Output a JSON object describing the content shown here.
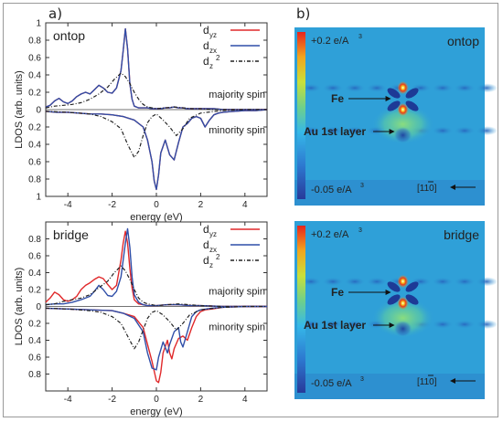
{
  "figure": {
    "panel_a_label": "a)",
    "panel_b_label": "b)"
  },
  "colors": {
    "dyz": "#e0282a",
    "dzx": "#2f4ea8",
    "dz2": "#222222",
    "map_background": "#2fa0d8",
    "map_background_dark": "#2a73c4"
  },
  "chart_data": [
    {
      "type": "line",
      "panel_title": "ontop",
      "xlabel": "energy (eV)",
      "ylabel": "LDOS (arb. units)",
      "xlim": [
        -5,
        5
      ],
      "ylim": [
        -1,
        1
      ],
      "xticks": [
        "-4",
        "-2",
        "0",
        "2",
        "4"
      ],
      "yticks_top": [
        "0.2",
        "0.4",
        "0.6",
        "0.8",
        "1"
      ],
      "yticks_bottom": [
        "0.2",
        "0.4",
        "0.6",
        "0.8",
        "1"
      ],
      "ytick_zero": "0",
      "annotations": [
        "majority spin",
        "minority spin"
      ],
      "legend": [
        "d",
        "d",
        "d"
      ],
      "legend_subscripts": [
        "yz",
        "zx",
        "z"
      ],
      "legend_superscript": "2",
      "series": [
        {
          "name": "dyz",
          "color": "#e0282a",
          "style": "solid",
          "x": [
            -5,
            -4.8,
            -4.6,
            -4.4,
            -4.2,
            -4.0,
            -3.8,
            -3.6,
            -3.4,
            -3.2,
            -3.0,
            -2.8,
            -2.6,
            -2.4,
            -2.2,
            -2.0,
            -1.8,
            -1.6,
            -1.5,
            -1.4,
            -1.3,
            -1.2,
            -1.1,
            -1.0,
            -0.8,
            -0.6,
            -0.4,
            -0.2,
            0.0,
            0.2,
            0.4,
            0.6,
            0.8,
            1.0,
            1.2,
            1.4,
            1.6,
            1.8,
            2.0,
            2.2,
            2.4,
            2.6,
            3.0,
            3.5,
            4.0,
            4.5,
            5.0
          ],
          "y": [
            0.03,
            0.05,
            0.1,
            0.13,
            0.09,
            0.07,
            0.1,
            0.15,
            0.18,
            0.2,
            0.18,
            0.23,
            0.28,
            0.25,
            0.2,
            0.19,
            0.25,
            0.45,
            0.68,
            0.93,
            0.7,
            0.3,
            0.12,
            0.04,
            0.02,
            0.02,
            0.02,
            0.01,
            0.01,
            0.01,
            0.02,
            0.02,
            0.03,
            0.02,
            0.02,
            0.01,
            0.01,
            0.01,
            0.01,
            0.01,
            0.01,
            0.01,
            0.0,
            0.0,
            0.0,
            0.0,
            0.0
          ]
        },
        {
          "name": "dzx",
          "color": "#2f4ea8",
          "style": "solid",
          "x": [
            -5,
            -4.8,
            -4.6,
            -4.4,
            -4.2,
            -4.0,
            -3.8,
            -3.6,
            -3.4,
            -3.2,
            -3.0,
            -2.8,
            -2.6,
            -2.4,
            -2.2,
            -2.0,
            -1.8,
            -1.6,
            -1.5,
            -1.4,
            -1.3,
            -1.2,
            -1.1,
            -1.0,
            -0.8,
            -0.6,
            -0.4,
            -0.2,
            0.0,
            0.2,
            0.4,
            0.6,
            0.8,
            1.0,
            1.2,
            1.4,
            1.6,
            1.8,
            2.0,
            2.2,
            2.4,
            2.6,
            3.0,
            3.5,
            4.0,
            4.5,
            5.0
          ],
          "y": [
            0.03,
            0.05,
            0.1,
            0.13,
            0.09,
            0.07,
            0.1,
            0.15,
            0.18,
            0.2,
            0.18,
            0.23,
            0.28,
            0.25,
            0.2,
            0.19,
            0.25,
            0.45,
            0.68,
            0.93,
            0.7,
            0.3,
            0.12,
            0.04,
            0.02,
            0.02,
            0.02,
            0.01,
            0.01,
            0.01,
            0.02,
            0.02,
            0.03,
            0.02,
            0.02,
            0.01,
            0.01,
            0.01,
            0.01,
            0.01,
            0.01,
            0.01,
            0.0,
            0.0,
            0.0,
            0.0,
            0.0
          ]
        },
        {
          "name": "dz2",
          "color": "#222222",
          "style": "dash-dot",
          "x": [
            -5,
            -4.6,
            -4.2,
            -3.8,
            -3.4,
            -3.0,
            -2.6,
            -2.2,
            -1.9,
            -1.6,
            -1.4,
            -1.2,
            -1.0,
            -0.8,
            -0.6,
            -0.4,
            -0.2,
            0.0,
            0.4,
            0.8,
            1.2,
            1.6,
            2.0,
            2.5,
            3.0,
            4.0,
            5.0
          ],
          "y": [
            0.02,
            0.04,
            0.05,
            0.06,
            0.08,
            0.12,
            0.18,
            0.26,
            0.35,
            0.42,
            0.38,
            0.3,
            0.2,
            0.12,
            0.06,
            0.03,
            0.02,
            0.01,
            0.02,
            0.03,
            0.02,
            0.01,
            0.01,
            0.0,
            0.0,
            0.0,
            0.0
          ]
        },
        {
          "name": "dyz",
          "color": "#e0282a",
          "style": "solid",
          "x": [
            -5,
            -4.5,
            -4.0,
            -3.5,
            -3.0,
            -2.5,
            -2.0,
            -1.5,
            -1.0,
            -0.6,
            -0.4,
            -0.2,
            -0.1,
            0.0,
            0.1,
            0.2,
            0.4,
            0.6,
            0.8,
            1.0,
            1.2,
            1.4,
            1.6,
            1.8,
            2.0,
            2.2,
            2.4,
            2.6,
            2.8,
            3.0,
            3.5,
            4.0,
            4.5,
            5.0
          ],
          "y": [
            -0.02,
            -0.03,
            -0.03,
            -0.04,
            -0.05,
            -0.05,
            -0.06,
            -0.08,
            -0.12,
            -0.2,
            -0.35,
            -0.6,
            -0.82,
            -0.92,
            -0.75,
            -0.5,
            -0.35,
            -0.52,
            -0.58,
            -0.38,
            -0.2,
            -0.16,
            -0.1,
            -0.08,
            -0.1,
            -0.2,
            -0.12,
            -0.06,
            -0.04,
            -0.03,
            -0.02,
            -0.01,
            -0.01,
            0.0
          ]
        },
        {
          "name": "dzx",
          "color": "#2f4ea8",
          "style": "solid",
          "x": [
            -5,
            -4.5,
            -4.0,
            -3.5,
            -3.0,
            -2.5,
            -2.0,
            -1.5,
            -1.0,
            -0.6,
            -0.4,
            -0.2,
            -0.1,
            0.0,
            0.1,
            0.2,
            0.4,
            0.6,
            0.8,
            1.0,
            1.2,
            1.4,
            1.6,
            1.8,
            2.0,
            2.2,
            2.4,
            2.6,
            2.8,
            3.0,
            3.5,
            4.0,
            4.5,
            5.0
          ],
          "y": [
            -0.02,
            -0.03,
            -0.03,
            -0.04,
            -0.05,
            -0.05,
            -0.06,
            -0.08,
            -0.12,
            -0.2,
            -0.35,
            -0.6,
            -0.82,
            -0.92,
            -0.75,
            -0.5,
            -0.35,
            -0.52,
            -0.58,
            -0.38,
            -0.2,
            -0.16,
            -0.1,
            -0.08,
            -0.1,
            -0.2,
            -0.12,
            -0.06,
            -0.04,
            -0.03,
            -0.02,
            -0.01,
            -0.01,
            0.0
          ]
        },
        {
          "name": "dz2",
          "color": "#222222",
          "style": "dash-dot",
          "x": [
            -5,
            -4.0,
            -3.0,
            -2.5,
            -2.0,
            -1.6,
            -1.3,
            -1.0,
            -0.8,
            -0.6,
            -0.4,
            -0.2,
            0.0,
            0.3,
            0.6,
            0.9,
            1.2,
            1.5,
            2.0,
            3.0,
            4.0,
            5.0
          ],
          "y": [
            -0.02,
            -0.03,
            -0.05,
            -0.08,
            -0.14,
            -0.22,
            -0.4,
            -0.55,
            -0.48,
            -0.3,
            -0.15,
            -0.08,
            -0.05,
            -0.12,
            -0.2,
            -0.3,
            -0.22,
            -0.1,
            -0.04,
            -0.01,
            0.0,
            0.0
          ]
        }
      ]
    },
    {
      "type": "line",
      "panel_title": "bridge",
      "xlabel": "energy (eV)",
      "ylabel": "LDOS (arb. units)",
      "xlim": [
        -5,
        5
      ],
      "ylim": [
        -1,
        1
      ],
      "xticks": [
        "-4",
        "-2",
        "0",
        "2",
        "4"
      ],
      "yticks_top": [
        "0.2",
        "0.4",
        "0.6",
        "0.8"
      ],
      "yticks_bottom": [
        "0.2",
        "0.4",
        "0.6",
        "0.8"
      ],
      "ytick_zero": "0",
      "annotations": [
        "majority spin",
        "minority spin"
      ],
      "legend": [
        "d",
        "d",
        "d"
      ],
      "legend_subscripts": [
        "yz",
        "zx",
        "z"
      ],
      "legend_superscript": "2",
      "series": [
        {
          "name": "dyz",
          "color": "#e0282a",
          "style": "solid",
          "x": [
            -5,
            -4.8,
            -4.6,
            -4.4,
            -4.2,
            -4.0,
            -3.8,
            -3.6,
            -3.4,
            -3.2,
            -3.0,
            -2.8,
            -2.6,
            -2.4,
            -2.2,
            -2.0,
            -1.8,
            -1.6,
            -1.5,
            -1.4,
            -1.3,
            -1.2,
            -1.1,
            -1.0,
            -0.8,
            -0.6,
            -0.4,
            -0.2,
            0.0,
            0.5,
            1.0,
            1.5,
            2.0,
            3.0,
            4.0,
            5.0
          ],
          "y": [
            0.05,
            0.1,
            0.17,
            0.14,
            0.08,
            0.06,
            0.08,
            0.12,
            0.2,
            0.25,
            0.28,
            0.32,
            0.35,
            0.33,
            0.26,
            0.2,
            0.25,
            0.55,
            0.75,
            0.89,
            0.75,
            0.45,
            0.22,
            0.08,
            0.03,
            0.02,
            0.01,
            0.01,
            0.01,
            0.02,
            0.02,
            0.01,
            0.01,
            0.0,
            0.0,
            0.0
          ]
        },
        {
          "name": "dzx",
          "color": "#2f4ea8",
          "style": "solid",
          "x": [
            -5,
            -4.6,
            -4.2,
            -3.8,
            -3.4,
            -3.0,
            -2.8,
            -2.6,
            -2.4,
            -2.2,
            -2.0,
            -1.8,
            -1.6,
            -1.5,
            -1.4,
            -1.3,
            -1.2,
            -1.1,
            -1.0,
            -0.8,
            -0.6,
            -0.4,
            -0.2,
            0.0,
            0.5,
            1.0,
            1.5,
            2.0,
            3.0,
            4.0,
            5.0
          ],
          "y": [
            0.02,
            0.03,
            0.03,
            0.05,
            0.08,
            0.12,
            0.18,
            0.25,
            0.2,
            0.13,
            0.12,
            0.18,
            0.35,
            0.55,
            0.75,
            0.92,
            0.7,
            0.35,
            0.14,
            0.05,
            0.02,
            0.01,
            0.01,
            0.01,
            0.02,
            0.02,
            0.01,
            0.01,
            0.0,
            0.0,
            0.0
          ]
        },
        {
          "name": "dz2",
          "color": "#222222",
          "style": "dash-dot",
          "x": [
            -5,
            -4.6,
            -4.2,
            -3.8,
            -3.4,
            -3.0,
            -2.6,
            -2.2,
            -1.9,
            -1.6,
            -1.4,
            -1.2,
            -1.0,
            -0.8,
            -0.6,
            -0.4,
            -0.2,
            0.0,
            0.5,
            1.0,
            1.5,
            2.0,
            3.0,
            4.0,
            5.0
          ],
          "y": [
            0.02,
            0.03,
            0.06,
            0.08,
            0.1,
            0.14,
            0.22,
            0.3,
            0.4,
            0.48,
            0.42,
            0.32,
            0.2,
            0.1,
            0.05,
            0.03,
            0.02,
            0.01,
            0.02,
            0.03,
            0.02,
            0.01,
            0.0,
            0.0,
            0.0
          ]
        },
        {
          "name": "dyz",
          "color": "#e0282a",
          "style": "solid",
          "x": [
            -5,
            -4.0,
            -3.0,
            -2.0,
            -1.5,
            -1.0,
            -0.6,
            -0.4,
            -0.2,
            0.0,
            0.1,
            0.2,
            0.3,
            0.5,
            0.6,
            0.7,
            0.8,
            1.0,
            1.2,
            1.4,
            1.6,
            1.8,
            2.0,
            2.2,
            2.5,
            3.0,
            4.0,
            5.0
          ],
          "y": [
            -0.02,
            -0.03,
            -0.04,
            -0.05,
            -0.08,
            -0.12,
            -0.25,
            -0.45,
            -0.65,
            -0.88,
            -0.9,
            -0.78,
            -0.55,
            -0.4,
            -0.55,
            -0.62,
            -0.5,
            -0.38,
            -0.35,
            -0.4,
            -0.25,
            -0.12,
            -0.06,
            -0.04,
            -0.03,
            -0.01,
            0.0,
            0.0
          ]
        },
        {
          "name": "dzx",
          "color": "#2f4ea8",
          "style": "solid",
          "x": [
            -5,
            -4.0,
            -3.0,
            -2.0,
            -1.5,
            -1.0,
            -0.6,
            -0.4,
            -0.2,
            0.0,
            0.1,
            0.3,
            0.5,
            0.6,
            0.8,
            1.0,
            1.1,
            1.2,
            1.4,
            1.6,
            1.8,
            2.0,
            2.5,
            3.0,
            4.0,
            5.0
          ],
          "y": [
            -0.02,
            -0.03,
            -0.04,
            -0.05,
            -0.08,
            -0.14,
            -0.3,
            -0.55,
            -0.73,
            -0.75,
            -0.6,
            -0.42,
            -0.55,
            -0.45,
            -0.3,
            -0.25,
            -0.42,
            -0.48,
            -0.3,
            -0.12,
            -0.06,
            -0.04,
            -0.02,
            -0.01,
            0.0,
            0.0
          ]
        },
        {
          "name": "dz2",
          "color": "#222222",
          "style": "dash-dot",
          "x": [
            -5,
            -4.0,
            -3.0,
            -2.5,
            -2.0,
            -1.6,
            -1.3,
            -1.0,
            -0.8,
            -0.6,
            -0.4,
            -0.2,
            0.0,
            0.3,
            0.6,
            0.9,
            1.2,
            1.5,
            2.0,
            3.0,
            4.0,
            5.0
          ],
          "y": [
            -0.02,
            -0.03,
            -0.05,
            -0.07,
            -0.12,
            -0.2,
            -0.35,
            -0.5,
            -0.42,
            -0.28,
            -0.14,
            -0.07,
            -0.05,
            -0.1,
            -0.18,
            -0.28,
            -0.2,
            -0.1,
            -0.04,
            -0.01,
            0.0,
            0.0
          ]
        }
      ]
    }
  ],
  "maps": [
    {
      "title": "ontop",
      "scale_max": "+0.2 e/A",
      "scale_min": "-0.05 e/A",
      "scale_exp": "3",
      "fe_label": "Fe",
      "au_label": "Au 1st layer",
      "direction_label": "[110]",
      "direction_overbar": "1"
    },
    {
      "title": "bridge",
      "scale_max": "+0.2 e/A",
      "scale_min": "-0.05 e/A",
      "scale_exp": "3",
      "fe_label": "Fe",
      "au_label": "Au 1st layer",
      "direction_label": "[110]",
      "direction_overbar": "1"
    }
  ]
}
